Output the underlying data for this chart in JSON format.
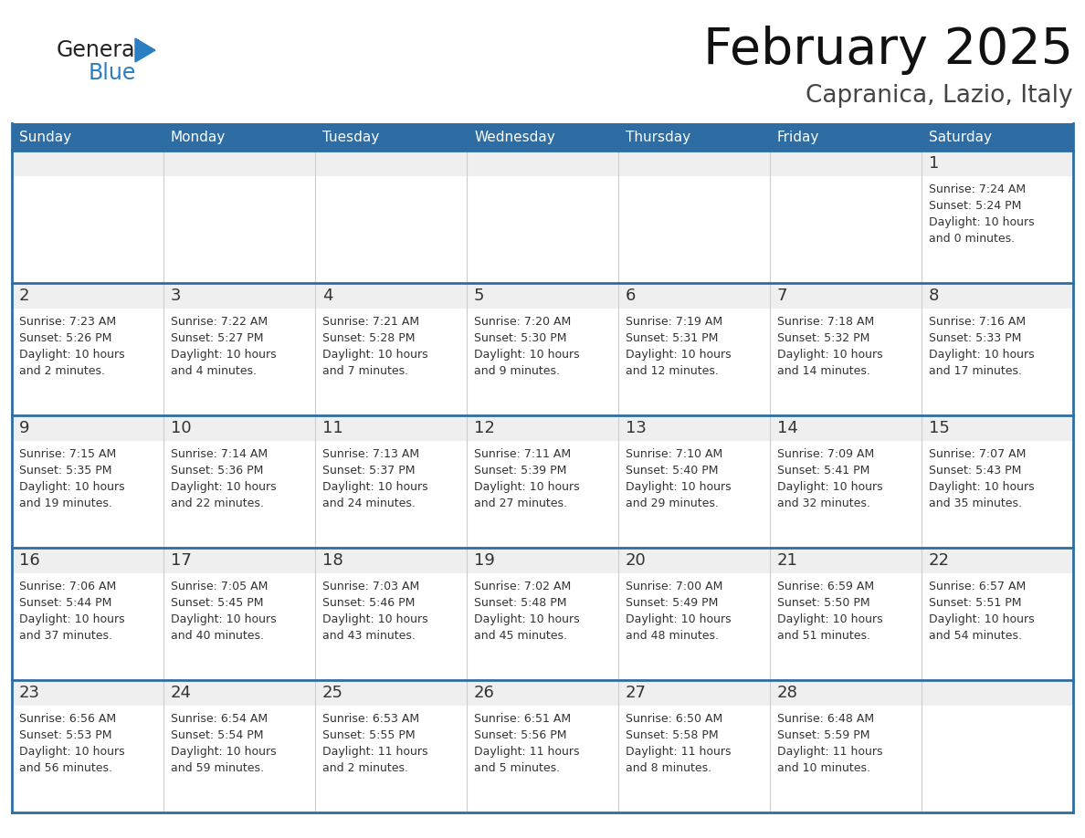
{
  "title": "February 2025",
  "subtitle": "Capranica, Lazio, Italy",
  "days_of_week": [
    "Sunday",
    "Monday",
    "Tuesday",
    "Wednesday",
    "Thursday",
    "Friday",
    "Saturday"
  ],
  "header_bg": "#2E6DA4",
  "header_text": "#FFFFFF",
  "cell_bg_light": "#EFEFEF",
  "cell_bg_white": "#FFFFFF",
  "border_color": "#2E6DA4",
  "day_num_color": "#333333",
  "text_color": "#333333",
  "logo_general_color": "#222222",
  "logo_blue_color": "#2B7EC1",
  "calendar_data": [
    [
      {
        "day": null,
        "info": ""
      },
      {
        "day": null,
        "info": ""
      },
      {
        "day": null,
        "info": ""
      },
      {
        "day": null,
        "info": ""
      },
      {
        "day": null,
        "info": ""
      },
      {
        "day": null,
        "info": ""
      },
      {
        "day": 1,
        "info": "Sunrise: 7:24 AM\nSunset: 5:24 PM\nDaylight: 10 hours\nand 0 minutes."
      }
    ],
    [
      {
        "day": 2,
        "info": "Sunrise: 7:23 AM\nSunset: 5:26 PM\nDaylight: 10 hours\nand 2 minutes."
      },
      {
        "day": 3,
        "info": "Sunrise: 7:22 AM\nSunset: 5:27 PM\nDaylight: 10 hours\nand 4 minutes."
      },
      {
        "day": 4,
        "info": "Sunrise: 7:21 AM\nSunset: 5:28 PM\nDaylight: 10 hours\nand 7 minutes."
      },
      {
        "day": 5,
        "info": "Sunrise: 7:20 AM\nSunset: 5:30 PM\nDaylight: 10 hours\nand 9 minutes."
      },
      {
        "day": 6,
        "info": "Sunrise: 7:19 AM\nSunset: 5:31 PM\nDaylight: 10 hours\nand 12 minutes."
      },
      {
        "day": 7,
        "info": "Sunrise: 7:18 AM\nSunset: 5:32 PM\nDaylight: 10 hours\nand 14 minutes."
      },
      {
        "day": 8,
        "info": "Sunrise: 7:16 AM\nSunset: 5:33 PM\nDaylight: 10 hours\nand 17 minutes."
      }
    ],
    [
      {
        "day": 9,
        "info": "Sunrise: 7:15 AM\nSunset: 5:35 PM\nDaylight: 10 hours\nand 19 minutes."
      },
      {
        "day": 10,
        "info": "Sunrise: 7:14 AM\nSunset: 5:36 PM\nDaylight: 10 hours\nand 22 minutes."
      },
      {
        "day": 11,
        "info": "Sunrise: 7:13 AM\nSunset: 5:37 PM\nDaylight: 10 hours\nand 24 minutes."
      },
      {
        "day": 12,
        "info": "Sunrise: 7:11 AM\nSunset: 5:39 PM\nDaylight: 10 hours\nand 27 minutes."
      },
      {
        "day": 13,
        "info": "Sunrise: 7:10 AM\nSunset: 5:40 PM\nDaylight: 10 hours\nand 29 minutes."
      },
      {
        "day": 14,
        "info": "Sunrise: 7:09 AM\nSunset: 5:41 PM\nDaylight: 10 hours\nand 32 minutes."
      },
      {
        "day": 15,
        "info": "Sunrise: 7:07 AM\nSunset: 5:43 PM\nDaylight: 10 hours\nand 35 minutes."
      }
    ],
    [
      {
        "day": 16,
        "info": "Sunrise: 7:06 AM\nSunset: 5:44 PM\nDaylight: 10 hours\nand 37 minutes."
      },
      {
        "day": 17,
        "info": "Sunrise: 7:05 AM\nSunset: 5:45 PM\nDaylight: 10 hours\nand 40 minutes."
      },
      {
        "day": 18,
        "info": "Sunrise: 7:03 AM\nSunset: 5:46 PM\nDaylight: 10 hours\nand 43 minutes."
      },
      {
        "day": 19,
        "info": "Sunrise: 7:02 AM\nSunset: 5:48 PM\nDaylight: 10 hours\nand 45 minutes."
      },
      {
        "day": 20,
        "info": "Sunrise: 7:00 AM\nSunset: 5:49 PM\nDaylight: 10 hours\nand 48 minutes."
      },
      {
        "day": 21,
        "info": "Sunrise: 6:59 AM\nSunset: 5:50 PM\nDaylight: 10 hours\nand 51 minutes."
      },
      {
        "day": 22,
        "info": "Sunrise: 6:57 AM\nSunset: 5:51 PM\nDaylight: 10 hours\nand 54 minutes."
      }
    ],
    [
      {
        "day": 23,
        "info": "Sunrise: 6:56 AM\nSunset: 5:53 PM\nDaylight: 10 hours\nand 56 minutes."
      },
      {
        "day": 24,
        "info": "Sunrise: 6:54 AM\nSunset: 5:54 PM\nDaylight: 10 hours\nand 59 minutes."
      },
      {
        "day": 25,
        "info": "Sunrise: 6:53 AM\nSunset: 5:55 PM\nDaylight: 11 hours\nand 2 minutes."
      },
      {
        "day": 26,
        "info": "Sunrise: 6:51 AM\nSunset: 5:56 PM\nDaylight: 11 hours\nand 5 minutes."
      },
      {
        "day": 27,
        "info": "Sunrise: 6:50 AM\nSunset: 5:58 PM\nDaylight: 11 hours\nand 8 minutes."
      },
      {
        "day": 28,
        "info": "Sunrise: 6:48 AM\nSunset: 5:59 PM\nDaylight: 11 hours\nand 10 minutes."
      },
      {
        "day": null,
        "info": ""
      }
    ]
  ]
}
